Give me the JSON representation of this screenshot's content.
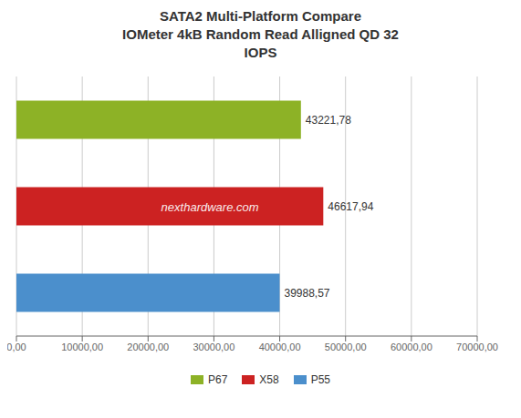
{
  "chart_data": {
    "type": "bar",
    "orientation": "horizontal",
    "title": "SATA2 Multi-Platform Compare\nIOMeter 4kB Random Read Alligned QD 32\nIOPS",
    "categories": [
      "P67",
      "X58",
      "P55"
    ],
    "values": [
      43221.78,
      46617.94,
      39988.57
    ],
    "value_labels": [
      "43221,78",
      "46617,94",
      "39988,57"
    ],
    "data_labels": true,
    "colors": [
      "#8db226",
      "#cc2222",
      "#4b8fcc"
    ],
    "xlim": [
      0,
      70000
    ],
    "xticks": [
      {
        "value": 0,
        "label": "0,00"
      },
      {
        "value": 10000,
        "label": "10000,00"
      },
      {
        "value": 20000,
        "label": "20000,00"
      },
      {
        "value": 30000,
        "label": "30000,00"
      },
      {
        "value": 40000,
        "label": "40000,00"
      },
      {
        "value": 50000,
        "label": "50000,00"
      },
      {
        "value": 60000,
        "label": "60000,00"
      },
      {
        "value": 70000,
        "label": "70000,00"
      }
    ],
    "tick_labels": "x",
    "grid": true,
    "legend": "bottom",
    "annotations": [
      "nexthardware.com"
    ]
  }
}
